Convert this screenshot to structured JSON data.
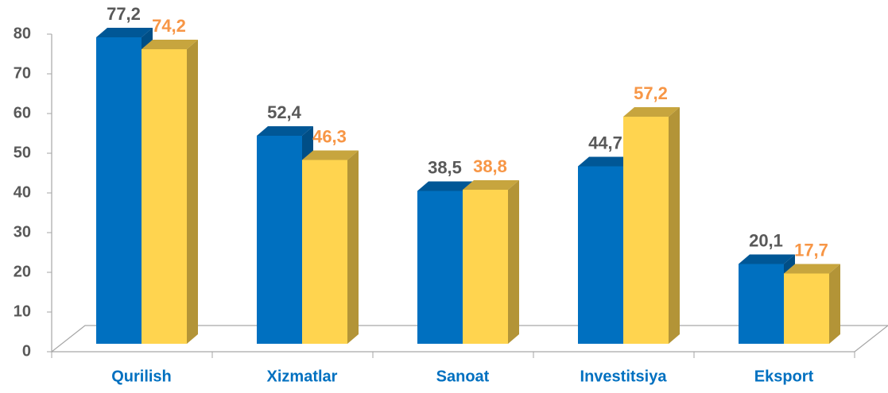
{
  "chart_data": {
    "type": "bar3d",
    "categories": [
      "Qurilish",
      "Xizmatlar",
      "Sanoat",
      "Investitsiya",
      "Eksport"
    ],
    "series": [
      {
        "color": "#0070c0",
        "label_color": "#595959",
        "values": [
          77.2,
          52.4,
          38.5,
          44.7,
          20.1
        ],
        "value_labels": [
          "77,2",
          "52,4",
          "38,5",
          "44,7",
          "20,1"
        ]
      },
      {
        "color": "#ffd44f",
        "label_color": "#f79646",
        "values": [
          74.2,
          46.3,
          38.8,
          57.2,
          17.7
        ],
        "value_labels": [
          "74,2",
          "46,3",
          "38,8",
          "57,2",
          "17,7"
        ]
      }
    ],
    "ylim": [
      0,
      80
    ],
    "yticks": [
      0,
      10,
      20,
      30,
      40,
      50,
      60,
      70,
      80
    ],
    "grid": false
  }
}
